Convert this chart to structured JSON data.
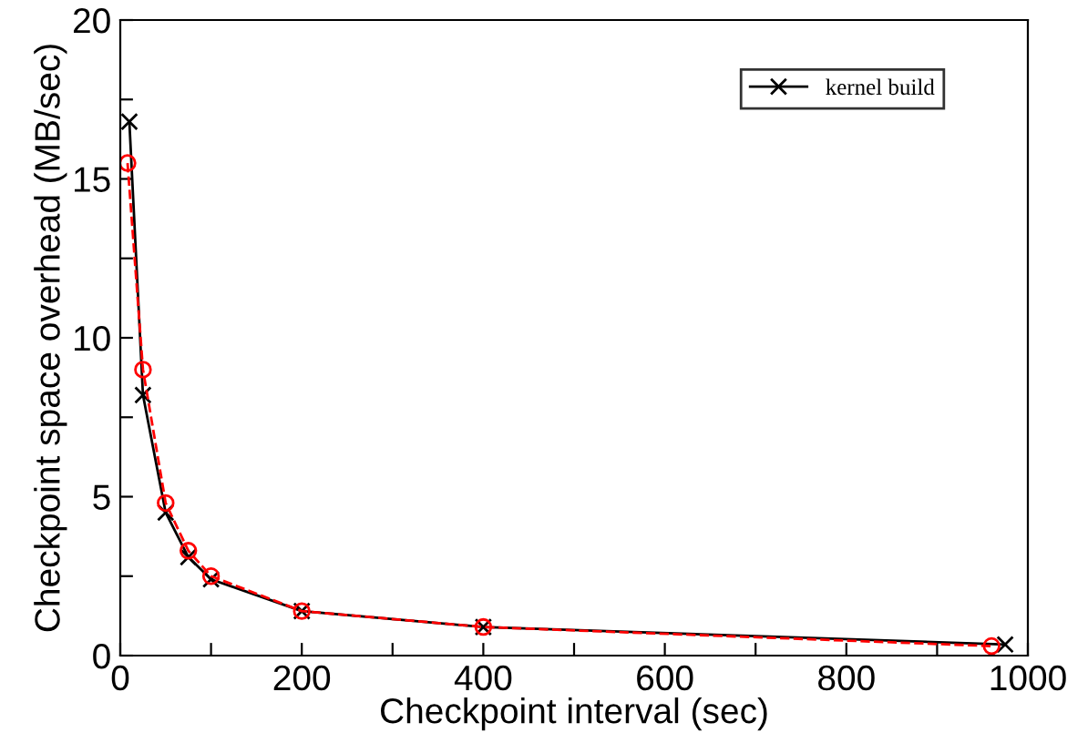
{
  "chart_data": {
    "type": "line",
    "xlabel": "Checkpoint interval (sec)",
    "ylabel": "Checkpoint space overhead (MB/sec)",
    "xlim": [
      0,
      1000
    ],
    "ylim": [
      0,
      20
    ],
    "xticks": [
      0,
      {
        "value": 100,
        "label": null
      },
      200,
      {
        "value": 300,
        "label": null
      },
      400,
      {
        "value": 500,
        "label": null
      },
      600,
      {
        "value": 700,
        "label": null
      },
      800,
      {
        "value": 900,
        "label": null
      },
      1000
    ],
    "yticks": [
      0,
      {
        "value": 2.5,
        "label": null
      },
      5,
      {
        "value": 7.5,
        "label": null
      },
      10,
      {
        "value": 12.5,
        "label": null
      },
      15,
      {
        "value": 17.5,
        "label": null
      },
      20
    ],
    "grid": false,
    "legend": "top right",
    "series": [
      {
        "name": "kernel build",
        "color": "#000000",
        "marker": "cross",
        "line_style": "solid",
        "x": [
          10,
          25,
          50,
          75,
          100,
          200,
          400,
          975
        ],
        "values": [
          16.8,
          8.2,
          4.5,
          3.1,
          2.4,
          1.4,
          0.9,
          0.35
        ]
      },
      {
        "color": "#ff0000",
        "marker": "circle",
        "line_style": "dashed",
        "x": [
          8,
          25,
          50,
          75,
          100,
          200,
          400,
          960
        ],
        "values": [
          15.5,
          9.0,
          4.8,
          3.3,
          2.5,
          1.4,
          0.9,
          0.3
        ]
      }
    ]
  }
}
